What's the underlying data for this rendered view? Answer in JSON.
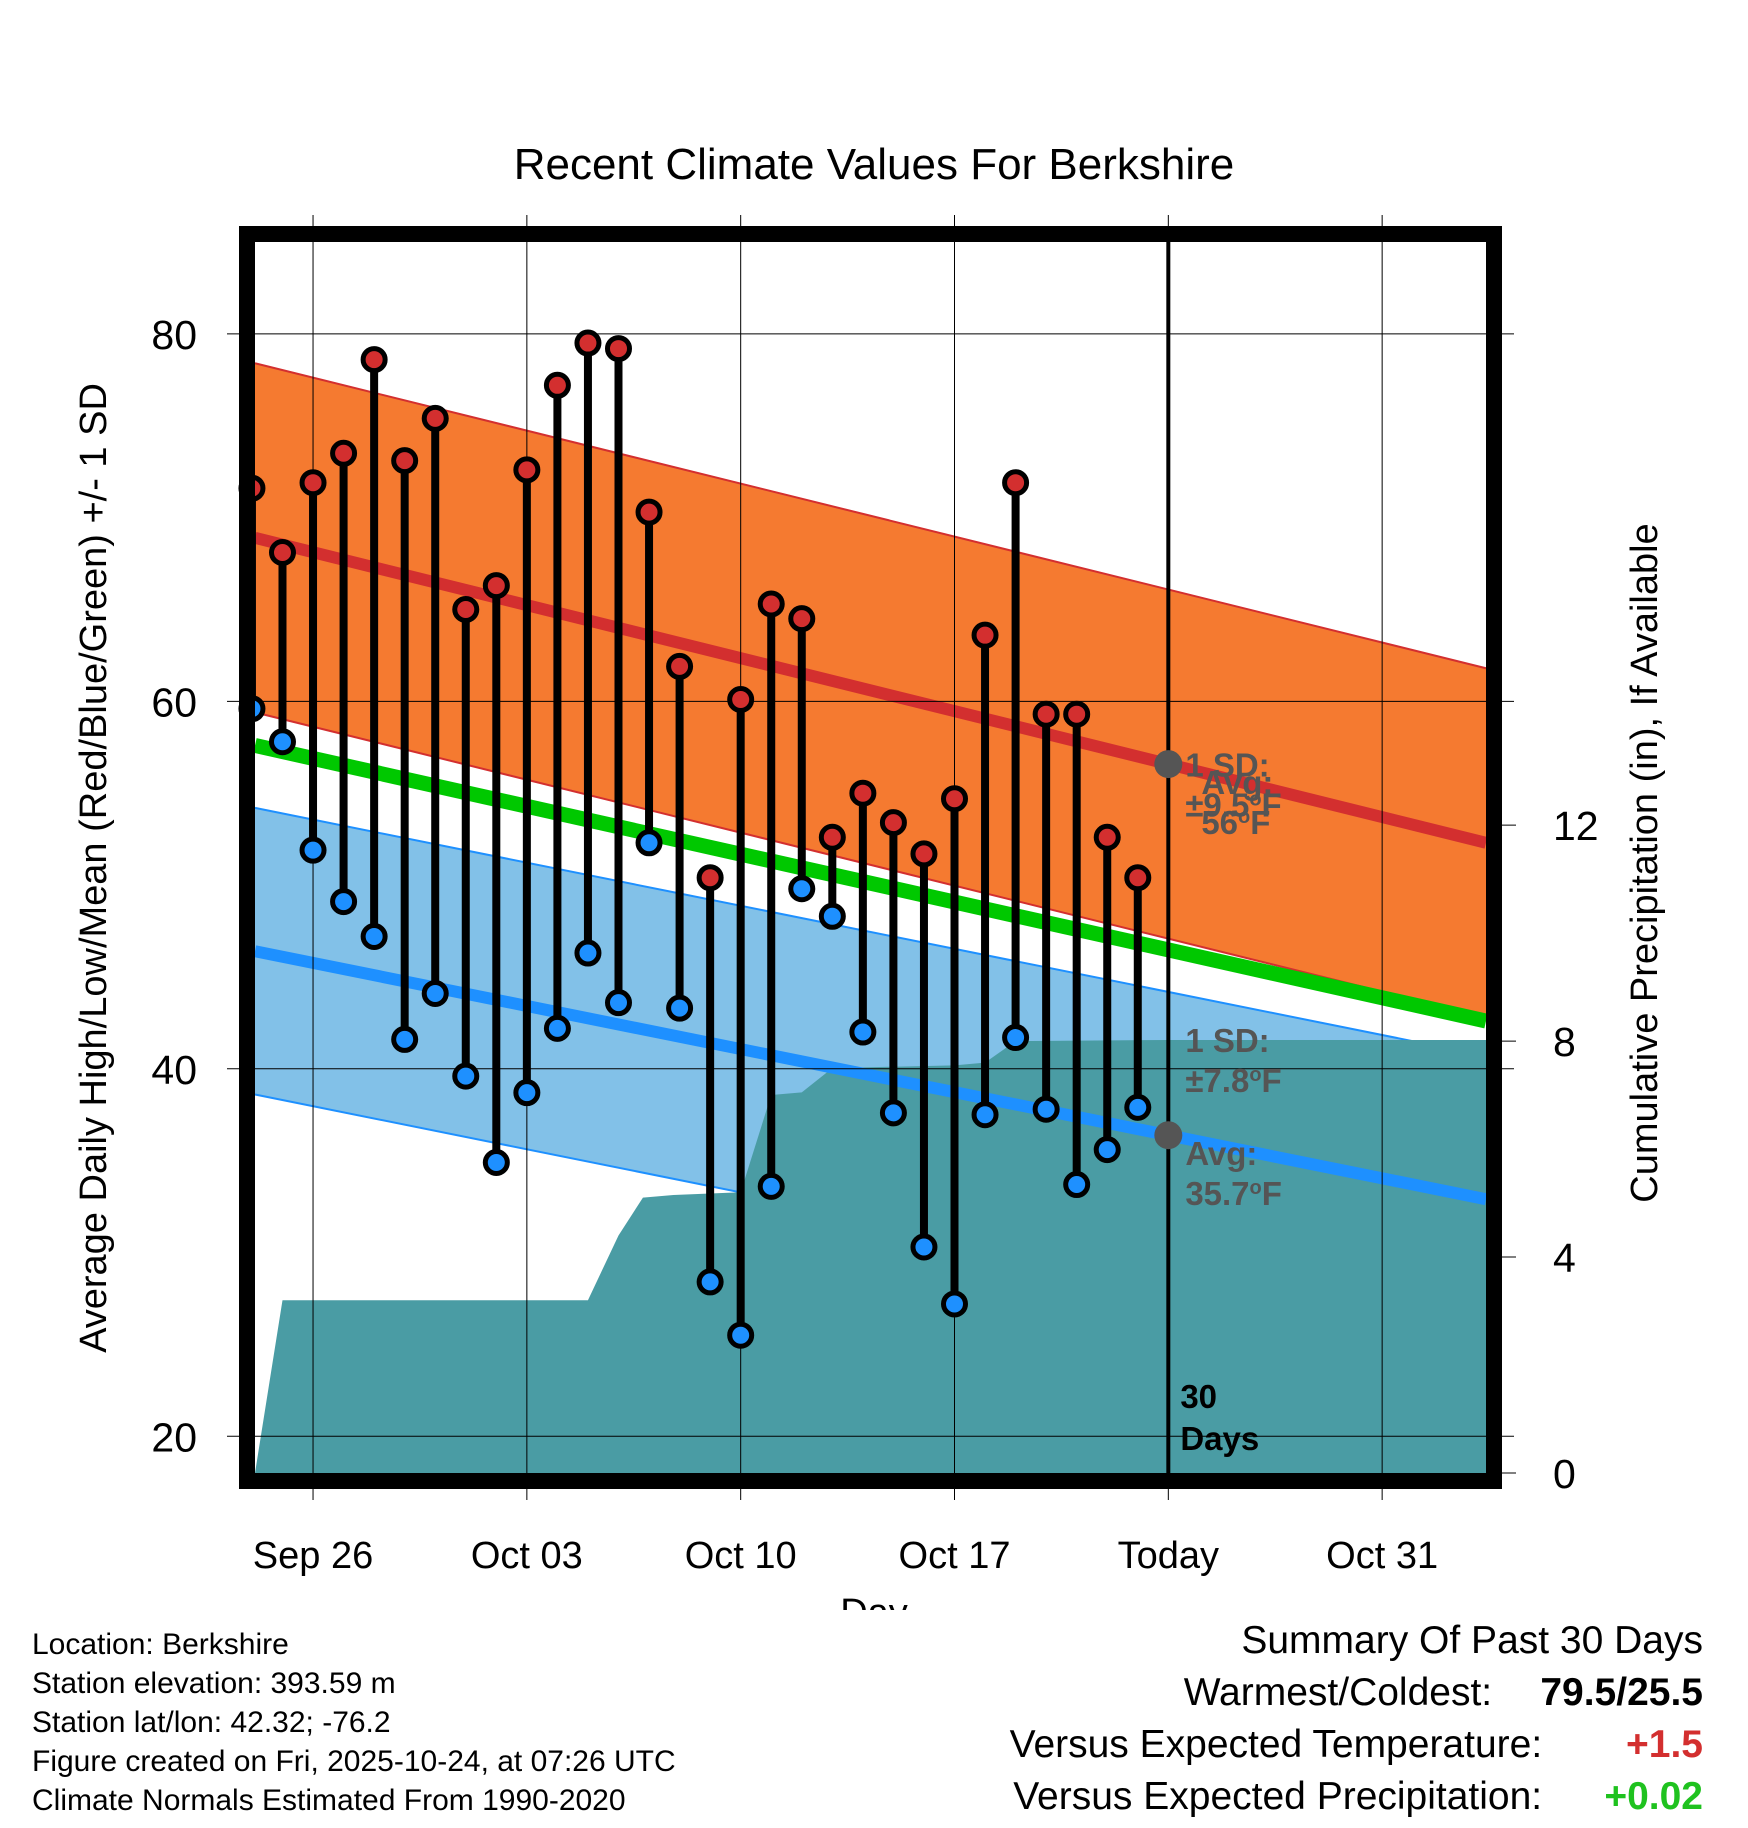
{
  "chart_data": {
    "type": "line",
    "title": "Recent Climate Values For Berkshire",
    "xlabel": "Day",
    "ylabel": "Average Daily High/Low/Mean (Red/Blue/Green) +/- 1 SD",
    "ylabel_right": "Cumulative Precipitation (in), If Available",
    "ylim": [
      18,
      85
    ],
    "y2lim": [
      0,
      22.8
    ],
    "y_ticks": [
      20,
      40,
      60,
      80
    ],
    "y2_ticks": [
      0,
      4,
      8,
      12
    ],
    "x_day_range": [
      -1.9,
      38.4
    ],
    "x_ticks": [
      {
        "day": 0,
        "label": "Sep 26"
      },
      {
        "day": 7,
        "label": "Oct 03"
      },
      {
        "day": 14,
        "label": "Oct 10"
      },
      {
        "day": 21,
        "label": "Oct 17"
      },
      {
        "day": 28,
        "label": "Today"
      },
      {
        "day": 35,
        "label": "Oct 31"
      }
    ],
    "today_day": 28,
    "days": [
      -2,
      -1,
      0,
      1,
      2,
      3,
      4,
      5,
      6,
      7,
      8,
      9,
      10,
      11,
      12,
      13,
      14,
      15,
      16,
      17,
      18,
      19,
      20,
      21,
      22,
      23,
      24,
      25,
      26,
      27
    ],
    "highs": [
      71.6,
      68.1,
      71.9,
      73.5,
      78.6,
      73.1,
      75.4,
      65.0,
      66.3,
      72.6,
      77.2,
      79.5,
      79.2,
      70.3,
      61.9,
      50.4,
      60.1,
      65.3,
      64.5,
      52.6,
      55.0,
      53.4,
      51.7,
      54.7,
      63.6,
      71.9,
      59.3,
      59.3,
      52.6,
      50.4
    ],
    "lows": [
      59.6,
      57.8,
      51.9,
      49.1,
      47.2,
      41.6,
      44.1,
      39.6,
      34.9,
      38.7,
      42.2,
      46.3,
      43.6,
      52.3,
      43.3,
      28.4,
      25.5,
      33.6,
      49.8,
      48.3,
      42.0,
      37.6,
      30.3,
      27.2,
      37.5,
      41.7,
      37.8,
      33.7,
      35.6,
      37.9
    ],
    "precip_cumulative": [
      {
        "day": -1.9,
        "value": 0
      },
      {
        "day": -1,
        "value": 3.2
      },
      {
        "day": 9,
        "value": 3.2
      },
      {
        "day": 10,
        "value": 4.4
      },
      {
        "day": 10.8,
        "value": 5.1
      },
      {
        "day": 11.8,
        "value": 5.15
      },
      {
        "day": 14,
        "value": 5.2
      },
      {
        "day": 15,
        "value": 7.0
      },
      {
        "day": 16,
        "value": 7.05
      },
      {
        "day": 17,
        "value": 7.5
      },
      {
        "day": 21,
        "value": 7.55
      },
      {
        "day": 22,
        "value": 7.6
      },
      {
        "day": 23,
        "value": 8.0
      },
      {
        "day": 28,
        "value": 8.02
      },
      {
        "day": 38.4,
        "value": 8.02
      }
    ],
    "normal_high": {
      "start": 68.9,
      "end": 52.3,
      "sd": 9.5
    },
    "normal_low": {
      "start": 46.4,
      "end": 32.9,
      "sd": 7.8
    },
    "normal_mean": {
      "start": 57.6,
      "end": 42.6
    },
    "annotations": {
      "high_sd_label": "1 SD:",
      "high_sd_value": "±9.5",
      "high_avg_label": "Avg:",
      "high_avg_value": "56",
      "low_sd_label": "1 SD:",
      "low_sd_value": "±7.8",
      "low_avg_label": "Avg:",
      "low_avg_value": "35.7",
      "deg_unit": "o",
      "f_unit": "F",
      "days_count": "30",
      "days_label": "Days"
    },
    "colors": {
      "high": "#d32f2f",
      "high_band": "#f57a30",
      "low": "#1e90ff",
      "low_band": "#82c1e8",
      "mean": "#00c800",
      "precip": "#4a9ca4",
      "annotation": "#555555"
    }
  },
  "footer": {
    "location": "Location: Berkshire",
    "elevation": "Station elevation: 393.59 m",
    "latlon": "Station lat/lon: 42.32; -76.2",
    "created": "Figure created on Fri, 2025-10-24, at 07:26 UTC",
    "normals": "Climate Normals Estimated From 1990-2020"
  },
  "summary": {
    "title": "Summary Of Past 30 Days",
    "warmest_coldest_label": "Warmest/Coldest:",
    "warmest_coldest_value": "79.5/25.5",
    "temp_label": "Versus Expected Temperature:",
    "temp_value": "+1.5",
    "precip_label": "Versus Expected Precipitation:",
    "precip_value": "+0.02"
  }
}
